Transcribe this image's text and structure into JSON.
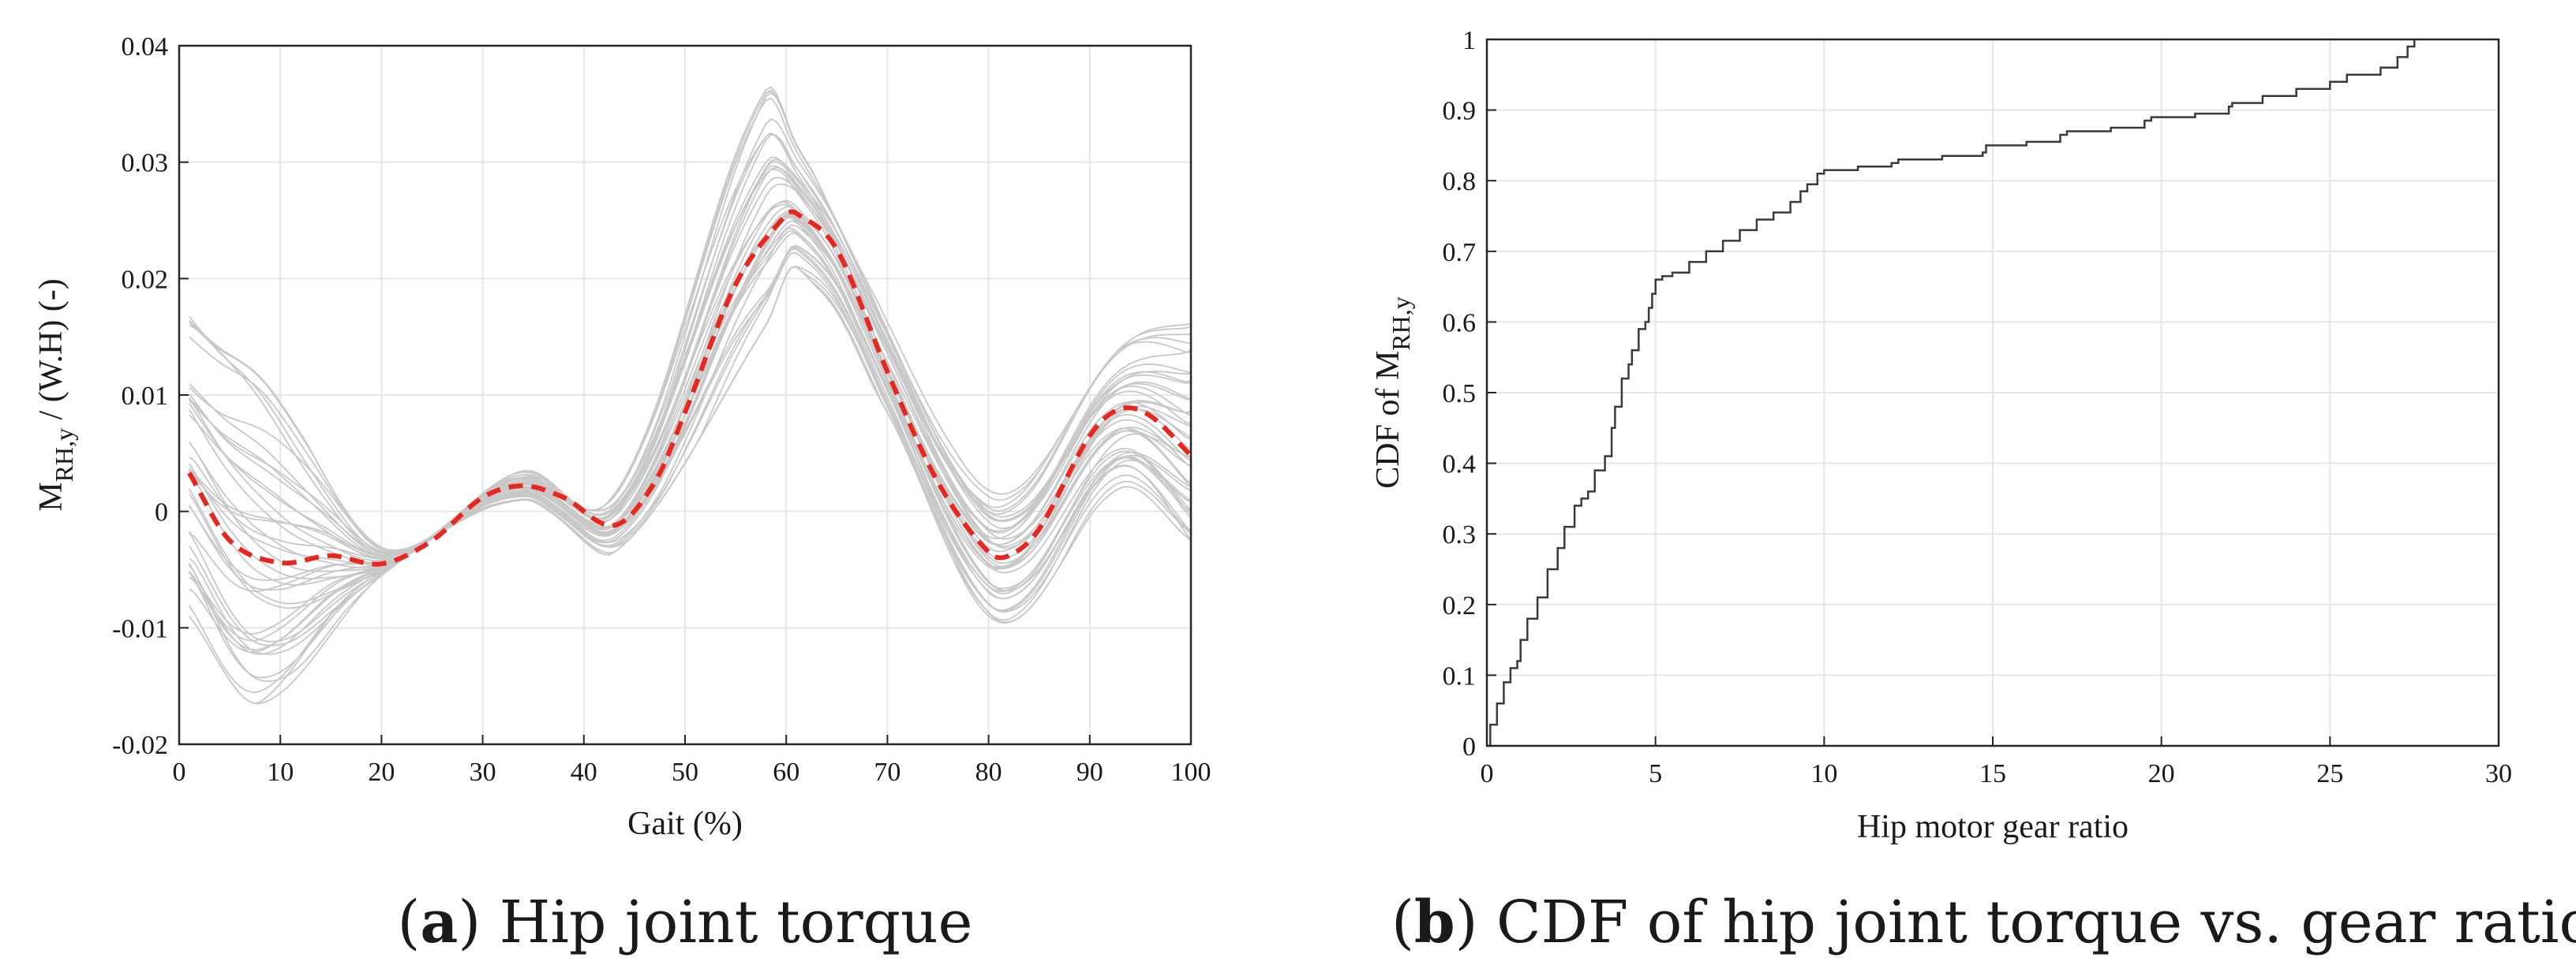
{
  "chart_data": [
    {
      "type": "line",
      "panel": "a",
      "caption_letter": "a",
      "caption_open": "(",
      "caption_close": ")",
      "caption_text": " Hip joint torque",
      "xlabel": "Gait (%)",
      "ylabel_main": "M",
      "ylabel_sub": "RH,y",
      "ylabel_rest": " / (W.H) (-)",
      "xlim": [
        0,
        100
      ],
      "ylim": [
        -0.02,
        0.04
      ],
      "xticks": [
        0,
        10,
        20,
        30,
        40,
        50,
        60,
        70,
        80,
        90,
        100
      ],
      "xtick_labels": [
        "0",
        "10",
        "20",
        "30",
        "40",
        "50",
        "60",
        "70",
        "80",
        "90",
        "100"
      ],
      "yticks": [
        -0.02,
        -0.01,
        0,
        0.01,
        0.02,
        0.03,
        0.04
      ],
      "ytick_labels": [
        "-0.02",
        "-0.01",
        "0",
        "0.01",
        "0.02",
        "0.03",
        "0.04"
      ],
      "grid": true,
      "mean_color": "#e8261e",
      "trial_color": "#c8c8c8",
      "mean_series": {
        "name": "mean",
        "style": "dashed",
        "x": [
          1,
          5,
          10,
          15,
          20,
          25,
          30,
          34,
          38,
          43,
          47,
          50,
          55,
          60,
          61,
          65,
          70,
          75,
          80,
          82,
          85,
          90,
          93,
          96,
          100
        ],
        "y": [
          0.0033,
          -0.0025,
          -0.0044,
          -0.0038,
          -0.0045,
          -0.0025,
          0.0012,
          0.0022,
          0.0012,
          -0.0012,
          0.0025,
          0.0085,
          0.0195,
          0.0255,
          0.0256,
          0.0225,
          0.012,
          0.0025,
          -0.0035,
          -0.0038,
          -0.0015,
          0.0065,
          0.0088,
          0.0082,
          0.0048
        ]
      },
      "trial_count": 40,
      "trial_envelope": {
        "x": [
          1,
          8,
          20,
          34,
          43,
          58,
          61,
          70,
          81,
          93,
          100
        ],
        "min": [
          -0.009,
          -0.0165,
          -0.0055,
          0.001,
          -0.0035,
          0.016,
          0.021,
          0.0085,
          -0.0095,
          0.002,
          -0.0025
        ],
        "max": [
          0.0175,
          0.0125,
          -0.003,
          0.0035,
          0.0015,
          0.0375,
          0.032,
          0.0165,
          0.0015,
          0.014,
          0.017
        ]
      }
    },
    {
      "type": "line",
      "panel": "b",
      "caption_letter": "b",
      "caption_open": "(",
      "caption_close": ")",
      "caption_text": " CDF of hip joint torque vs. gear ratio",
      "xlabel": "Hip motor gear ratio",
      "ylabel_main": "CDF of M",
      "ylabel_sub": "RH,y",
      "ylabel_rest": "",
      "xlim": [
        0,
        30
      ],
      "ylim": [
        0,
        1
      ],
      "xticks": [
        0,
        5,
        10,
        15,
        20,
        25,
        30
      ],
      "xtick_labels": [
        "0",
        "5",
        "10",
        "15",
        "20",
        "25",
        "30"
      ],
      "yticks": [
        0,
        0.1,
        0.2,
        0.3,
        0.4,
        0.5,
        0.6,
        0.7,
        0.8,
        0.9,
        1
      ],
      "ytick_labels": [
        "0",
        "0.1",
        "0.2",
        "0.3",
        "0.4",
        "0.5",
        "0.6",
        "0.7",
        "0.8",
        "0.9",
        "1"
      ],
      "grid": true,
      "line_color": "#3a3a3a",
      "series": [
        {
          "name": "CDF",
          "x": [
            0,
            0.1,
            0.3,
            0.5,
            0.7,
            0.9,
            1.0,
            1.2,
            1.5,
            1.8,
            2.1,
            2.3,
            2.6,
            2.8,
            3.0,
            3.2,
            3.5,
            3.7,
            3.8,
            4.0,
            4.2,
            4.3,
            4.5,
            4.7,
            4.8,
            4.9,
            5.0,
            5.2,
            5.5,
            6.0,
            6.5,
            7.0,
            7.5,
            8.0,
            8.5,
            9.0,
            9.3,
            9.5,
            9.8,
            10.0,
            11.0,
            12.0,
            12.2,
            13.5,
            14.7,
            14.8,
            16.0,
            17.0,
            17.2,
            18.5,
            19.5,
            19.7,
            21.0,
            22.0,
            22.1,
            23.0,
            24.0,
            25.0,
            25.5,
            26.5,
            27.0,
            27.3,
            27.5
          ],
          "y": [
            0,
            0.03,
            0.06,
            0.09,
            0.11,
            0.12,
            0.15,
            0.18,
            0.21,
            0.25,
            0.28,
            0.31,
            0.34,
            0.35,
            0.36,
            0.39,
            0.41,
            0.45,
            0.48,
            0.52,
            0.54,
            0.56,
            0.59,
            0.6,
            0.62,
            0.64,
            0.66,
            0.665,
            0.67,
            0.685,
            0.7,
            0.715,
            0.73,
            0.745,
            0.755,
            0.77,
            0.785,
            0.795,
            0.81,
            0.815,
            0.82,
            0.825,
            0.83,
            0.835,
            0.84,
            0.85,
            0.855,
            0.865,
            0.87,
            0.875,
            0.885,
            0.89,
            0.895,
            0.905,
            0.91,
            0.92,
            0.93,
            0.94,
            0.95,
            0.96,
            0.975,
            0.99,
            1.0
          ]
        }
      ]
    }
  ]
}
